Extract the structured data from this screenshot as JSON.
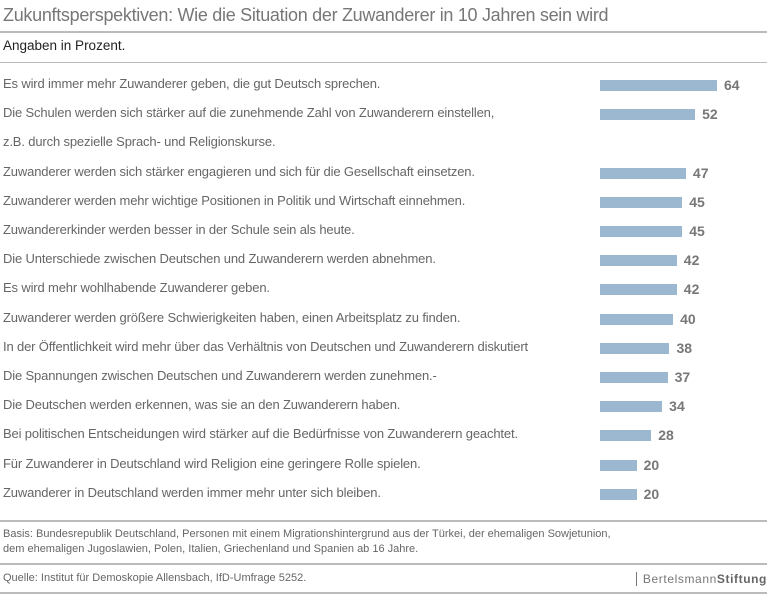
{
  "title": "Zukunftsperspektiven: Wie die Situation der Zuwanderer in 10 Jahren sein wird",
  "subtitle": "Angaben in Prozent.",
  "chart_data": {
    "type": "bar",
    "orientation": "horizontal",
    "title": "Zukunftsperspektiven: Wie die Situation der Zuwanderer in 10 Jahren sein wird",
    "unit": "Prozent",
    "categories": [
      [
        "Es wird immer mehr Zuwanderer geben, die gut Deutsch sprechen."
      ],
      [
        "Die Schulen werden sich stärker auf die zunehmende Zahl von Zuwanderern einstellen,",
        "z.B. durch spezielle Sprach- und Religionskurse."
      ],
      [
        "Zuwanderer werden sich stärker engagieren und sich für die Gesellschaft einsetzen."
      ],
      [
        "Zuwanderer werden mehr wichtige Positionen in Politik und Wirtschaft einnehmen."
      ],
      [
        "Zuwandererkinder werden besser in der Schule sein als heute."
      ],
      [
        "Die Unterschiede zwischen Deutschen und Zuwanderern werden abnehmen."
      ],
      [
        "Es wird mehr wohlhabende Zuwanderer geben."
      ],
      [
        "Zuwanderer werden größere Schwierigkeiten haben, einen Arbeitsplatz zu finden."
      ],
      [
        "In der Öffentlichkeit wird mehr über das Verhältnis von Deutschen und Zuwanderern diskutiert"
      ],
      [
        "Die Spannungen zwischen Deutschen und Zuwanderern werden zunehmen.-"
      ],
      [
        "Die Deutschen werden erkennen, was sie an den Zuwanderern haben."
      ],
      [
        "Bei politischen Entscheidungen wird stärker auf die Bedürfnisse von Zuwanderern geachtet."
      ],
      [
        "Für Zuwanderer in Deutschland wird Religion eine geringere Rolle spielen."
      ],
      [
        "Zuwanderer in Deutschland werden immer mehr unter sich bleiben."
      ]
    ],
    "values": [
      64,
      52,
      47,
      45,
      45,
      42,
      42,
      40,
      38,
      37,
      34,
      28,
      20,
      20
    ],
    "bar_color": "#9cb8d0"
  },
  "footer": {
    "basis": [
      "Basis: Bundesrepublik Deutschland, Personen mit einem Migrationshintergrund aus der Türkei, der ehemaligen Sowjetunion,",
      "dem ehemaligen Jugoslawien, Polen, Italien, Griechenland und Spanien ab 16 Jahre."
    ],
    "source": "Quelle: Institut für Demoskopie Allensbach, IfD-Umfrage 5252.",
    "logo_a": "Bertelsmann",
    "logo_b": "Stiftung"
  }
}
